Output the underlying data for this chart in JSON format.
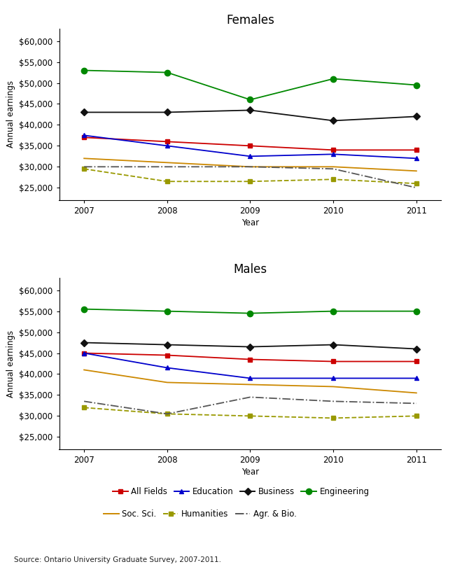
{
  "years": [
    2007,
    2008,
    2009,
    2010,
    2011
  ],
  "females": {
    "All Fields": [
      37000,
      36000,
      35000,
      34000,
      34000
    ],
    "Education": [
      37500,
      35000,
      32500,
      33000,
      32000
    ],
    "Business": [
      43000,
      43000,
      43500,
      41000,
      42000
    ],
    "Engineering": [
      53000,
      52500,
      46000,
      51000,
      49500
    ],
    "Soc. Sci.": [
      32000,
      31000,
      30000,
      30000,
      29000
    ],
    "Humanities": [
      29500,
      26500,
      26500,
      27000,
      26000
    ],
    "Agr. & Bio.": [
      30000,
      30000,
      30000,
      29500,
      25000
    ]
  },
  "males": {
    "All Fields": [
      45000,
      44500,
      43500,
      43000,
      43000
    ],
    "Education": [
      45000,
      41500,
      39000,
      39000,
      39000
    ],
    "Business": [
      47500,
      47000,
      46500,
      47000,
      46000
    ],
    "Engineering": [
      55500,
      55000,
      54500,
      55000,
      55000
    ],
    "Soc. Sci.": [
      41000,
      38000,
      37500,
      37000,
      35500
    ],
    "Humanities": [
      32000,
      30500,
      30000,
      29500,
      30000
    ],
    "Agr. & Bio.": [
      33500,
      30500,
      34500,
      33500,
      33000
    ]
  },
  "series_styles": {
    "All Fields": {
      "color": "#cc0000",
      "marker": "s",
      "linestyle": "-",
      "markersize": 5,
      "linewidth": 1.3
    },
    "Education": {
      "color": "#0000cc",
      "marker": "^",
      "linestyle": "-",
      "markersize": 5,
      "linewidth": 1.3
    },
    "Business": {
      "color": "#111111",
      "marker": "D",
      "linestyle": "-",
      "markersize": 5,
      "linewidth": 1.3
    },
    "Engineering": {
      "color": "#008800",
      "marker": "o",
      "linestyle": "-",
      "markersize": 6,
      "linewidth": 1.3
    },
    "Soc. Sci.": {
      "color": "#cc8800",
      "marker": "",
      "linestyle": "-",
      "markersize": 0,
      "linewidth": 1.3
    },
    "Humanities": {
      "color": "#999900",
      "marker": "s",
      "linestyle": "--",
      "markersize": 4,
      "linewidth": 1.3
    },
    "Agr. & Bio.": {
      "color": "#555555",
      "marker": "",
      "linestyle": "-.",
      "markersize": 0,
      "linewidth": 1.3
    }
  },
  "ylim_f": [
    22000,
    63000
  ],
  "ylim_m": [
    22000,
    63000
  ],
  "yticks": [
    25000,
    30000,
    35000,
    40000,
    45000,
    50000,
    55000,
    60000
  ],
  "xlabel": "Year",
  "ylabel": "Annual earnings",
  "title_females": "Females",
  "title_males": "Males",
  "source": "Source: Ontario University Graduate Survey, 2007-2011.",
  "legend_order": [
    "All Fields",
    "Education",
    "Business",
    "Engineering",
    "Soc. Sci.",
    "Humanities",
    "Agr. & Bio."
  ],
  "background_color": "#ffffff"
}
